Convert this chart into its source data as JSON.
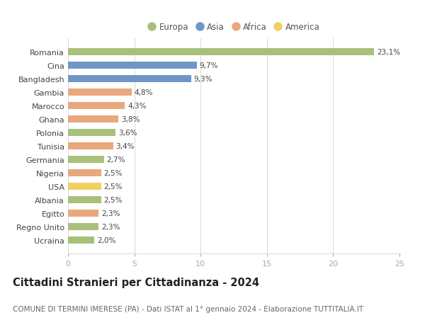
{
  "countries": [
    "Romania",
    "Cina",
    "Bangladesh",
    "Gambia",
    "Marocco",
    "Ghana",
    "Polonia",
    "Tunisia",
    "Germania",
    "Nigeria",
    "USA",
    "Albania",
    "Egitto",
    "Regno Unito",
    "Ucraina"
  ],
  "values": [
    23.1,
    9.7,
    9.3,
    4.8,
    4.3,
    3.8,
    3.6,
    3.4,
    2.7,
    2.5,
    2.5,
    2.5,
    2.3,
    2.3,
    2.0
  ],
  "labels": [
    "23,1%",
    "9,7%",
    "9,3%",
    "4,8%",
    "4,3%",
    "3,8%",
    "3,6%",
    "3,4%",
    "2,7%",
    "2,5%",
    "2,5%",
    "2,5%",
    "2,3%",
    "2,3%",
    "2,0%"
  ],
  "continents": [
    "Europa",
    "Asia",
    "Asia",
    "Africa",
    "Africa",
    "Africa",
    "Europa",
    "Africa",
    "Europa",
    "Africa",
    "America",
    "Europa",
    "Africa",
    "Europa",
    "Europa"
  ],
  "colors": {
    "Europa": "#a8c07a",
    "Asia": "#7096c8",
    "Africa": "#e8a87c",
    "America": "#f0d060"
  },
  "legend_order": [
    "Europa",
    "Asia",
    "Africa",
    "America"
  ],
  "title": "Cittadini Stranieri per Cittadinanza - 2024",
  "subtitle": "COMUNE DI TERMINI IMERESE (PA) - Dati ISTAT al 1° gennaio 2024 - Elaborazione TUTTITALIA.IT",
  "xlim": [
    0,
    25
  ],
  "xticks": [
    0,
    5,
    10,
    15,
    20,
    25
  ],
  "background_color": "#ffffff",
  "grid_color": "#dddddd",
  "bar_height": 0.55,
  "title_fontsize": 10.5,
  "subtitle_fontsize": 7.5,
  "label_fontsize": 7.5,
  "tick_fontsize": 8,
  "legend_fontsize": 8.5
}
